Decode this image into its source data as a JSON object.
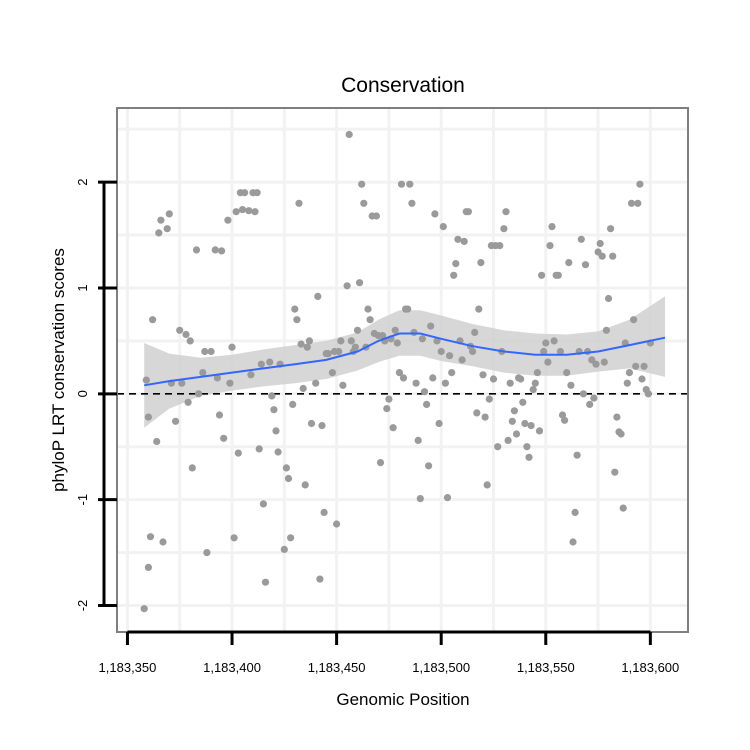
{
  "chart_data": {
    "type": "scatter",
    "title": "Conservation",
    "xlabel": "Genomic Position",
    "ylabel": "phyloP LRT conservation scores",
    "xlim": [
      1183345,
      1183618
    ],
    "ylim": [
      -2.25,
      2.7
    ],
    "x_ticks": [
      1183350,
      1183400,
      1183450,
      1183500,
      1183550,
      1183600
    ],
    "x_tick_labels": [
      "1,183,350",
      "1,183,400",
      "1,183,450",
      "1,183,500",
      "1,183,550",
      "1,183,600"
    ],
    "y_ticks": [
      -2,
      -1,
      0,
      1,
      2
    ],
    "y_tick_labels": [
      "-2",
      "-1",
      "0",
      "1",
      "2"
    ],
    "reference_line": {
      "y": 0,
      "style": "dashed"
    },
    "colors": {
      "points": "#9a9a9a",
      "smooth": "#3366ff",
      "band": "#d0d0d0",
      "panel_border": "#7f7f7f",
      "grid": "#f2f2f2"
    },
    "points": [
      [
        1183358,
        -2.03
      ],
      [
        1183360,
        -1.64
      ],
      [
        1183361,
        -1.35
      ],
      [
        1183362,
        0.7
      ],
      [
        1183364,
        -0.45
      ],
      [
        1183365,
        1.52
      ],
      [
        1183366,
        1.64
      ],
      [
        1183367,
        -1.4
      ],
      [
        1183369,
        1.56
      ],
      [
        1183370,
        1.7
      ],
      [
        1183359,
        0.13
      ],
      [
        1183360,
        -0.22
      ],
      [
        1183371,
        0.1
      ],
      [
        1183373,
        -0.26
      ],
      [
        1183375,
        0.6
      ],
      [
        1183376,
        0.1
      ],
      [
        1183378,
        0.56
      ],
      [
        1183379,
        -0.08
      ],
      [
        1183380,
        0.5
      ],
      [
        1183381,
        -0.7
      ],
      [
        1183383,
        1.36
      ],
      [
        1183384,
        0.0
      ],
      [
        1183386,
        0.2
      ],
      [
        1183387,
        0.4
      ],
      [
        1183388,
        -1.5
      ],
      [
        1183390,
        0.4
      ],
      [
        1183392,
        1.36
      ],
      [
        1183393,
        0.15
      ],
      [
        1183394,
        -0.2
      ],
      [
        1183395,
        1.35
      ],
      [
        1183396,
        -0.42
      ],
      [
        1183398,
        1.64
      ],
      [
        1183399,
        0.1
      ],
      [
        1183400,
        0.44
      ],
      [
        1183401,
        -1.36
      ],
      [
        1183402,
        1.72
      ],
      [
        1183403,
        -0.56
      ],
      [
        1183404,
        1.9
      ],
      [
        1183405,
        1.74
      ],
      [
        1183406,
        1.9
      ],
      [
        1183408,
        1.73
      ],
      [
        1183409,
        0.18
      ],
      [
        1183410,
        1.9
      ],
      [
        1183411,
        1.72
      ],
      [
        1183412,
        1.9
      ],
      [
        1183413,
        -0.52
      ],
      [
        1183414,
        0.28
      ],
      [
        1183415,
        -1.04
      ],
      [
        1183416,
        -1.78
      ],
      [
        1183418,
        0.3
      ],
      [
        1183419,
        -0.02
      ],
      [
        1183420,
        -0.15
      ],
      [
        1183421,
        -0.35
      ],
      [
        1183422,
        -0.55
      ],
      [
        1183423,
        0.28
      ],
      [
        1183425,
        -1.47
      ],
      [
        1183426,
        -0.7
      ],
      [
        1183427,
        -0.8
      ],
      [
        1183428,
        -1.36
      ],
      [
        1183429,
        -0.1
      ],
      [
        1183430,
        0.8
      ],
      [
        1183431,
        0.7
      ],
      [
        1183432,
        1.8
      ],
      [
        1183433,
        0.47
      ],
      [
        1183434,
        0.05
      ],
      [
        1183435,
        -0.86
      ],
      [
        1183436,
        0.44
      ],
      [
        1183437,
        0.5
      ],
      [
        1183438,
        -0.28
      ],
      [
        1183440,
        0.1
      ],
      [
        1183441,
        0.92
      ],
      [
        1183442,
        -1.75
      ],
      [
        1183443,
        -0.3
      ],
      [
        1183444,
        -1.12
      ],
      [
        1183445,
        0.38
      ],
      [
        1183446,
        0.38
      ],
      [
        1183448,
        0.2
      ],
      [
        1183449,
        0.4
      ],
      [
        1183450,
        -1.23
      ],
      [
        1183451,
        0.4
      ],
      [
        1183452,
        0.5
      ],
      [
        1183453,
        0.08
      ],
      [
        1183455,
        1.02
      ],
      [
        1183456,
        2.45
      ],
      [
        1183457,
        0.5
      ],
      [
        1183458,
        0.4
      ],
      [
        1183459,
        0.44
      ],
      [
        1183460,
        0.6
      ],
      [
        1183461,
        1.05
      ],
      [
        1183462,
        1.98
      ],
      [
        1183463,
        1.8
      ],
      [
        1183464,
        0.44
      ],
      [
        1183465,
        0.8
      ],
      [
        1183466,
        0.7
      ],
      [
        1183467,
        1.68
      ],
      [
        1183468,
        0.57
      ],
      [
        1183469,
        1.68
      ],
      [
        1183470,
        0.55
      ],
      [
        1183471,
        -0.65
      ],
      [
        1183472,
        0.55
      ],
      [
        1183473,
        0.5
      ],
      [
        1183474,
        -0.14
      ],
      [
        1183475,
        -0.05
      ],
      [
        1183476,
        0.52
      ],
      [
        1183477,
        -0.32
      ],
      [
        1183478,
        0.6
      ],
      [
        1183479,
        0.48
      ],
      [
        1183480,
        0.2
      ],
      [
        1183481,
        1.98
      ],
      [
        1183482,
        0.15
      ],
      [
        1183483,
        0.8
      ],
      [
        1183484,
        0.8
      ],
      [
        1183485,
        1.98
      ],
      [
        1183486,
        1.8
      ],
      [
        1183487,
        0.58
      ],
      [
        1183488,
        0.1
      ],
      [
        1183489,
        -0.44
      ],
      [
        1183490,
        -0.99
      ],
      [
        1183491,
        0.52
      ],
      [
        1183492,
        0.02
      ],
      [
        1183493,
        -0.1
      ],
      [
        1183494,
        -0.68
      ],
      [
        1183495,
        0.64
      ],
      [
        1183496,
        0.15
      ],
      [
        1183497,
        1.7
      ],
      [
        1183498,
        0.5
      ],
      [
        1183499,
        -0.28
      ],
      [
        1183500,
        0.4
      ],
      [
        1183501,
        1.58
      ],
      [
        1183502,
        0.1
      ],
      [
        1183503,
        -0.98
      ],
      [
        1183504,
        0.36
      ],
      [
        1183505,
        0.2
      ],
      [
        1183506,
        1.12
      ],
      [
        1183507,
        1.23
      ],
      [
        1183508,
        1.46
      ],
      [
        1183509,
        0.5
      ],
      [
        1183510,
        0.32
      ],
      [
        1183511,
        1.44
      ],
      [
        1183512,
        1.72
      ],
      [
        1183513,
        1.72
      ],
      [
        1183514,
        0.45
      ],
      [
        1183515,
        0.4
      ],
      [
        1183516,
        0.58
      ],
      [
        1183517,
        -0.18
      ],
      [
        1183518,
        0.8
      ],
      [
        1183519,
        1.24
      ],
      [
        1183520,
        0.18
      ],
      [
        1183521,
        -0.22
      ],
      [
        1183522,
        -0.86
      ],
      [
        1183523,
        -0.05
      ],
      [
        1183524,
        1.4
      ],
      [
        1183525,
        0.14
      ],
      [
        1183526,
        1.4
      ],
      [
        1183527,
        -0.5
      ],
      [
        1183528,
        1.4
      ],
      [
        1183529,
        0.4
      ],
      [
        1183530,
        1.56
      ],
      [
        1183531,
        1.72
      ],
      [
        1183532,
        -0.44
      ],
      [
        1183533,
        0.1
      ],
      [
        1183534,
        -0.26
      ],
      [
        1183535,
        -0.16
      ],
      [
        1183536,
        -0.38
      ],
      [
        1183537,
        0.15
      ],
      [
        1183538,
        0.14
      ],
      [
        1183539,
        -0.08
      ],
      [
        1183540,
        -0.28
      ],
      [
        1183541,
        -0.5
      ],
      [
        1183542,
        -0.6
      ],
      [
        1183543,
        -0.3
      ],
      [
        1183544,
        0.04
      ],
      [
        1183545,
        0.1
      ],
      [
        1183546,
        0.2
      ],
      [
        1183547,
        -0.35
      ],
      [
        1183548,
        1.12
      ],
      [
        1183549,
        0.4
      ],
      [
        1183550,
        0.48
      ],
      [
        1183551,
        0.3
      ],
      [
        1183552,
        1.4
      ],
      [
        1183553,
        1.58
      ],
      [
        1183554,
        0.5
      ],
      [
        1183555,
        1.12
      ],
      [
        1183556,
        1.12
      ],
      [
        1183557,
        0.4
      ],
      [
        1183558,
        -0.2
      ],
      [
        1183559,
        -0.25
      ],
      [
        1183560,
        0.2
      ],
      [
        1183561,
        1.24
      ],
      [
        1183562,
        0.08
      ],
      [
        1183563,
        -1.4
      ],
      [
        1183564,
        -1.12
      ],
      [
        1183565,
        -0.58
      ],
      [
        1183566,
        0.4
      ],
      [
        1183567,
        1.46
      ],
      [
        1183568,
        0.0
      ],
      [
        1183569,
        1.22
      ],
      [
        1183570,
        0.4
      ],
      [
        1183571,
        -0.1
      ],
      [
        1183572,
        0.32
      ],
      [
        1183573,
        -0.04
      ],
      [
        1183574,
        0.28
      ],
      [
        1183575,
        1.34
      ],
      [
        1183576,
        1.42
      ],
      [
        1183577,
        1.3
      ],
      [
        1183578,
        0.3
      ],
      [
        1183579,
        0.6
      ],
      [
        1183580,
        0.9
      ],
      [
        1183581,
        1.56
      ],
      [
        1183582,
        1.3
      ],
      [
        1183583,
        -0.74
      ],
      [
        1183584,
        -0.22
      ],
      [
        1183585,
        -0.36
      ],
      [
        1183586,
        -0.38
      ],
      [
        1183587,
        -1.08
      ],
      [
        1183588,
        0.48
      ],
      [
        1183589,
        0.1
      ],
      [
        1183590,
        0.2
      ],
      [
        1183591,
        1.8
      ],
      [
        1183592,
        0.7
      ],
      [
        1183593,
        0.26
      ],
      [
        1183594,
        1.8
      ],
      [
        1183595,
        1.98
      ],
      [
        1183596,
        0.14
      ],
      [
        1183597,
        0.26
      ],
      [
        1183598,
        0.04
      ],
      [
        1183599,
        0.0
      ],
      [
        1183600,
        0.48
      ]
    ],
    "smooth": {
      "x": [
        1183358,
        1183370,
        1183385,
        1183400,
        1183415,
        1183430,
        1183445,
        1183460,
        1183470,
        1183480,
        1183490,
        1183500,
        1183515,
        1183530,
        1183545,
        1183560,
        1183575,
        1183590,
        1183607
      ],
      "y": [
        0.08,
        0.12,
        0.16,
        0.2,
        0.24,
        0.28,
        0.32,
        0.4,
        0.5,
        0.57,
        0.57,
        0.52,
        0.45,
        0.4,
        0.37,
        0.37,
        0.4,
        0.46,
        0.53
      ],
      "upper": [
        0.48,
        0.38,
        0.34,
        0.37,
        0.42,
        0.46,
        0.5,
        0.58,
        0.7,
        0.79,
        0.79,
        0.74,
        0.66,
        0.6,
        0.57,
        0.56,
        0.59,
        0.7,
        0.92
      ],
      "lower": [
        -0.32,
        -0.14,
        -0.02,
        0.03,
        0.07,
        0.1,
        0.14,
        0.22,
        0.3,
        0.36,
        0.36,
        0.31,
        0.26,
        0.2,
        0.17,
        0.17,
        0.21,
        0.24,
        0.16
      ]
    }
  }
}
